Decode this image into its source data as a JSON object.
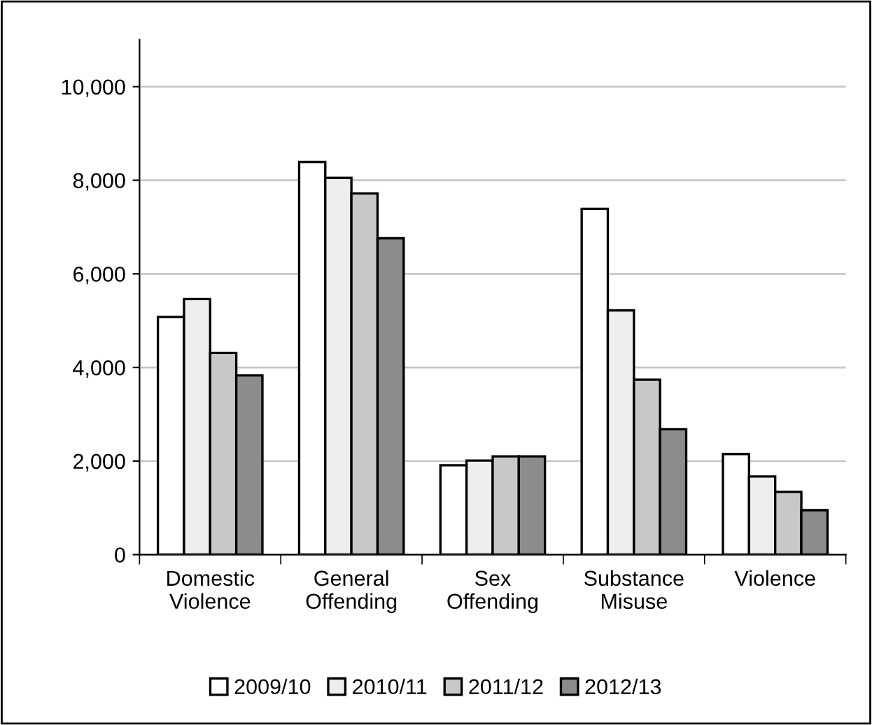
{
  "chart_data": {
    "type": "bar",
    "categories": [
      "Domestic\nViolence",
      "General\nOffending",
      "Sex\nOffending",
      "Substance\nMisuse",
      "Violence"
    ],
    "series": [
      {
        "name": "2009/10",
        "color": "#ffffff",
        "values": [
          5080,
          8390,
          1910,
          7390,
          2150
        ]
      },
      {
        "name": "2010/11",
        "color": "#eeeeee",
        "values": [
          5460,
          8050,
          2010,
          5220,
          1670
        ]
      },
      {
        "name": "2011/12",
        "color": "#c8c8c8",
        "values": [
          4310,
          7720,
          2100,
          3740,
          1340
        ]
      },
      {
        "name": "2012/13",
        "color": "#8c8c8c",
        "values": [
          3830,
          6760,
          2100,
          2680,
          950
        ]
      }
    ],
    "ylim": [
      0,
      11000
    ],
    "yticks": [
      {
        "value": 0,
        "label": "0"
      },
      {
        "value": 2000,
        "label": "2,000"
      },
      {
        "value": 4000,
        "label": "4,000"
      },
      {
        "value": 6000,
        "label": "6,000"
      },
      {
        "value": 8000,
        "label": "8,000"
      },
      {
        "value": 10000,
        "label": "10,000"
      }
    ],
    "grid": "y",
    "legend": "bottom"
  }
}
